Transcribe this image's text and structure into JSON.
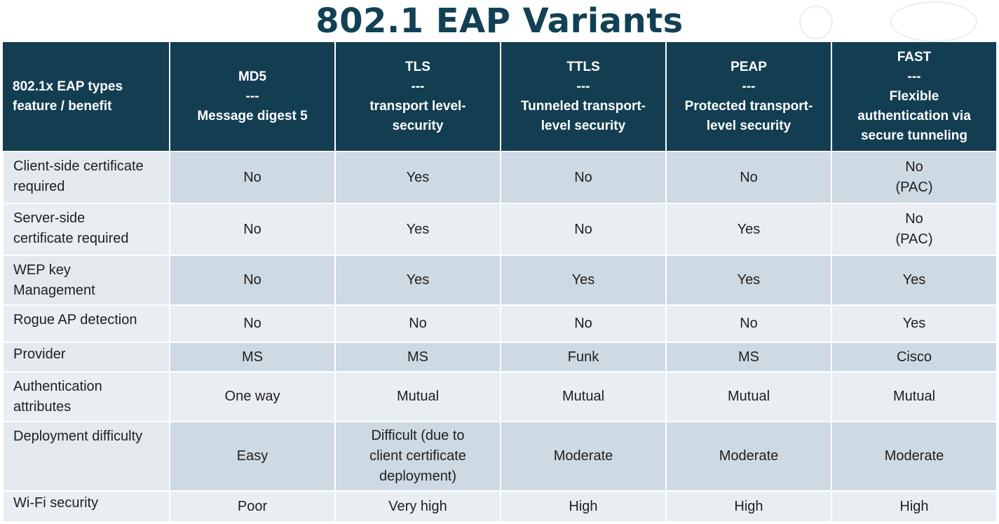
{
  "title": "802.1 EAP Variants",
  "table": {
    "headers": [
      "802.1x EAP types\nfeature / benefit",
      "MD5\n---\nMessage digest 5",
      "TLS\n---\ntransport level-\nsecurity",
      "TTLS\n---\nTunneled transport-\nlevel security",
      "PEAP\n---\nProtected transport-\nlevel security",
      "FAST\n---\nFlexible\nauthentication via\nsecure tunneling"
    ],
    "rows": [
      [
        "Client-side certificate\nrequired",
        "No",
        "Yes",
        "No",
        "No",
        "No\n(PAC)"
      ],
      [
        "Server-side\ncertificate required",
        "No",
        "Yes",
        "No",
        "Yes",
        "No\n(PAC)"
      ],
      [
        "WEP key\nManagement",
        "No",
        "Yes",
        "Yes",
        "Yes",
        "Yes"
      ],
      [
        "Rogue AP detection",
        "No",
        "No",
        "No",
        "No",
        "Yes"
      ],
      [
        "Provider",
        "MS",
        "MS",
        "Funk",
        "MS",
        "Cisco"
      ],
      [
        "Authentication\nattributes",
        "One way",
        "Mutual",
        "Mutual",
        "Mutual",
        "Mutual"
      ],
      [
        "Deployment difficulty",
        "Easy",
        "Difficult (due to\nclient certificate\ndeployment)",
        "Moderate",
        "Moderate",
        "Moderate"
      ],
      [
        "Wi-Fi security",
        "Poor",
        "Very high",
        "High",
        "High",
        "High"
      ]
    ]
  },
  "colors": {
    "title": "#124155",
    "header_bg": "#133e52",
    "row_dark": "#cdd9e3",
    "row_light": "#e9eef3"
  }
}
